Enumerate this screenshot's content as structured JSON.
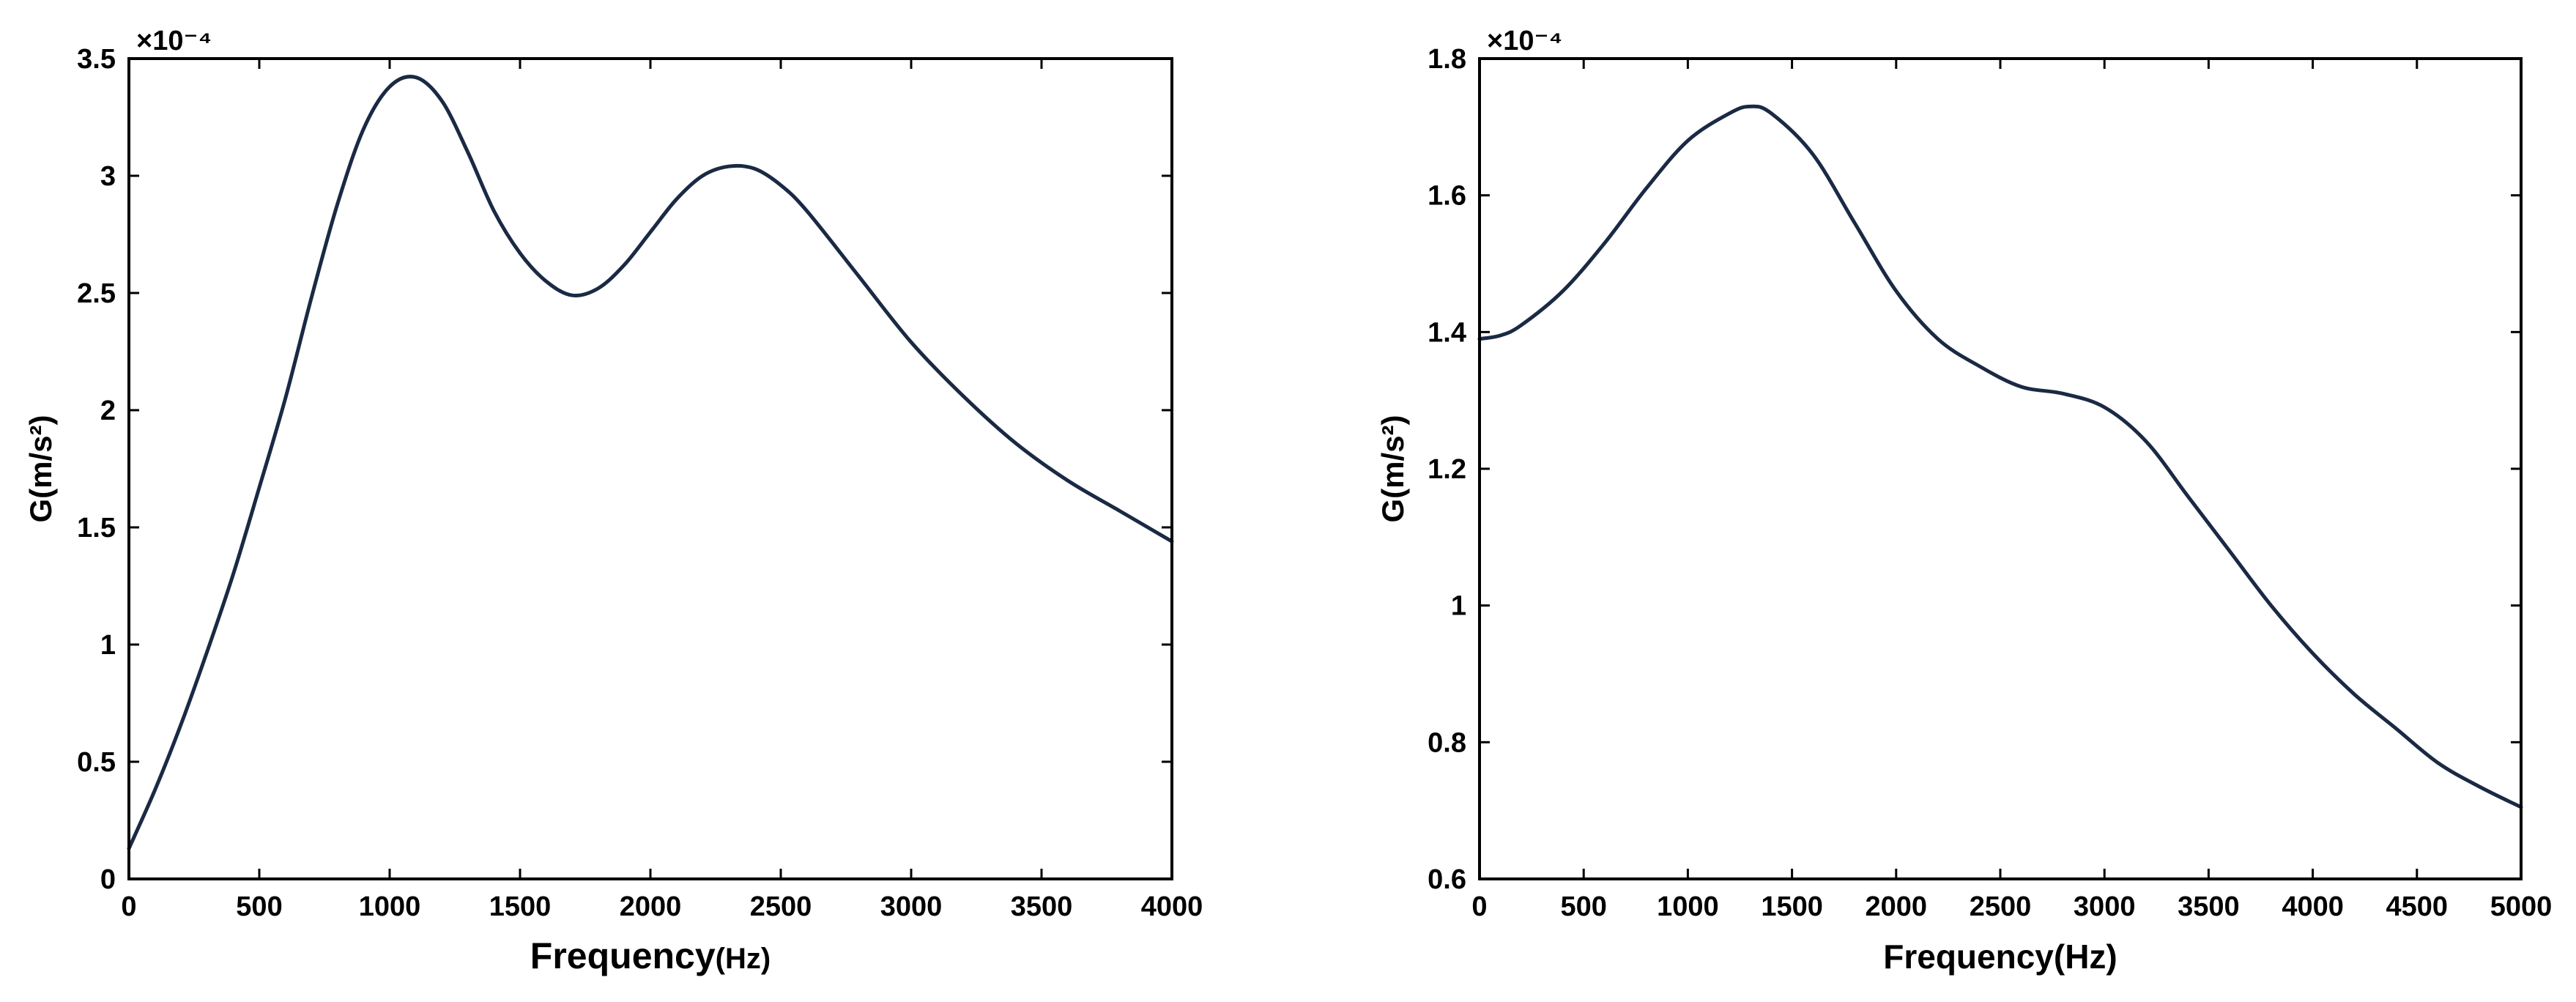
{
  "chart_data": [
    {
      "type": "line",
      "exponent_label": "×10⁻⁴",
      "xlabel": {
        "main": "Frequency",
        "unit": "(Hz)"
      },
      "ylabel": "G(m/s²)",
      "xlim": [
        0,
        4000
      ],
      "ylim": [
        0,
        3.5
      ],
      "xticks": [
        0,
        500,
        1000,
        1500,
        2000,
        2500,
        3000,
        3500,
        4000
      ],
      "yticks": [
        0,
        0.5,
        1,
        1.5,
        2,
        2.5,
        3,
        3.5
      ],
      "ytick_labels": [
        "0",
        "0.5",
        "1",
        "1.5",
        "2",
        "2.5",
        "3",
        "3.5"
      ],
      "grid": false,
      "series": [
        {
          "color": "#1a2a44",
          "x": [
            0,
            100,
            200,
            300,
            400,
            500,
            600,
            700,
            800,
            900,
            1000,
            1100,
            1200,
            1300,
            1400,
            1500,
            1600,
            1700,
            1800,
            1900,
            2000,
            2100,
            2200,
            2300,
            2400,
            2500,
            2600,
            2800,
            3000,
            3200,
            3400,
            3600,
            3800,
            4000
          ],
          "y": [
            0.13,
            0.38,
            0.66,
            0.97,
            1.3,
            1.67,
            2.05,
            2.48,
            2.88,
            3.2,
            3.38,
            3.42,
            3.32,
            3.1,
            2.85,
            2.67,
            2.55,
            2.49,
            2.52,
            2.62,
            2.76,
            2.9,
            3.0,
            3.04,
            3.03,
            2.96,
            2.85,
            2.57,
            2.29,
            2.06,
            1.86,
            1.7,
            1.57,
            1.44
          ]
        }
      ]
    },
    {
      "type": "line",
      "exponent_label": "×10⁻⁴",
      "xlabel": {
        "main": "Frequency",
        "unit": "(Hz)"
      },
      "ylabel": "G(m/s²)",
      "xlim": [
        0,
        5000
      ],
      "ylim": [
        0.6,
        1.8
      ],
      "xticks": [
        0,
        500,
        1000,
        1500,
        2000,
        2500,
        3000,
        3500,
        4000,
        4500,
        5000
      ],
      "yticks": [
        0.6,
        0.8,
        1.0,
        1.2,
        1.4,
        1.6,
        1.8
      ],
      "ytick_labels": [
        "0.6",
        "0.8",
        "1",
        "1.2",
        "1.4",
        "1.6",
        "1.8"
      ],
      "grid": false,
      "series": [
        {
          "color": "#1a2a44",
          "x": [
            0,
            100,
            200,
            400,
            600,
            800,
            1000,
            1200,
            1300,
            1400,
            1600,
            1800,
            2000,
            2200,
            2400,
            2600,
            2800,
            3000,
            3200,
            3400,
            3600,
            3800,
            4000,
            4200,
            4400,
            4600,
            4800,
            5000
          ],
          "y": [
            1.39,
            1.395,
            1.41,
            1.46,
            1.53,
            1.61,
            1.68,
            1.72,
            1.73,
            1.72,
            1.66,
            1.56,
            1.46,
            1.39,
            1.35,
            1.32,
            1.31,
            1.29,
            1.24,
            1.16,
            1.08,
            1.0,
            0.93,
            0.87,
            0.82,
            0.77,
            0.735,
            0.705
          ]
        }
      ]
    }
  ]
}
